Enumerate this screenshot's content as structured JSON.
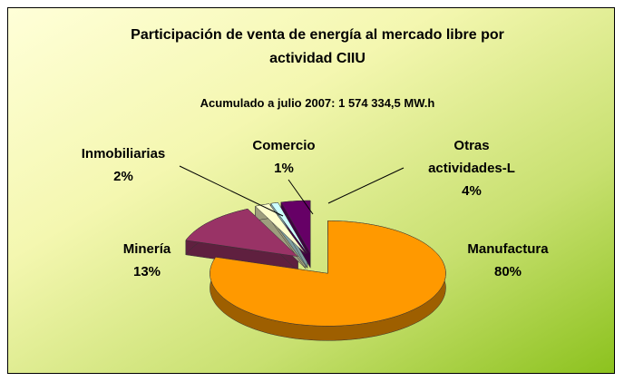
{
  "chart_data": {
    "type": "pie",
    "title": "Participación de venta de energía al mercado libre por actividad CIIU",
    "subtitle": "Acumulado a julio 2007: 1 574 334,5 MW.h",
    "categories": [
      "Manufactura",
      "Minería",
      "Inmobiliarias",
      "Comercio",
      "Otras actividades-L"
    ],
    "values": [
      80,
      13,
      2,
      1,
      4
    ],
    "value_labels": [
      "80%",
      "13%",
      "2%",
      "1%",
      "4%"
    ],
    "colors": [
      "#FF9900",
      "#993366",
      "#FFFFCC",
      "#CCFFFF",
      "#660066"
    ]
  }
}
